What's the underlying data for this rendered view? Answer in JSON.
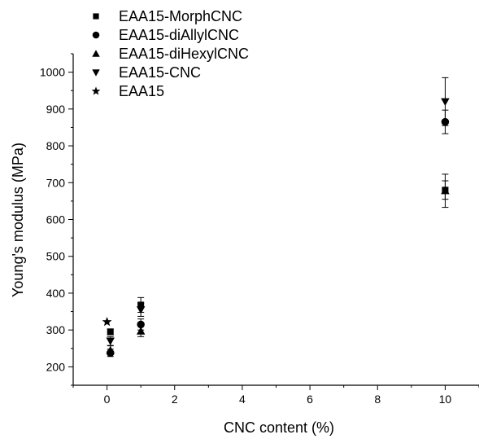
{
  "chart_data": {
    "type": "scatter",
    "title": "",
    "xlabel": "CNC content (%)",
    "ylabel": "Young's modulus (MPa)",
    "xlim": [
      -1,
      11
    ],
    "ylim": [
      150,
      1050
    ],
    "x_ticks": [
      0,
      2,
      4,
      6,
      8,
      10
    ],
    "y_ticks": [
      200,
      300,
      400,
      500,
      600,
      700,
      800,
      900,
      1000
    ],
    "grid": false,
    "legend_position": "top-left",
    "series": [
      {
        "name": "EAA15-MorphCNC",
        "marker": "square",
        "points": [
          {
            "x": 0.1,
            "y": 295,
            "err": 8
          },
          {
            "x": 1,
            "y": 368,
            "err": 20
          },
          {
            "x": 10,
            "y": 680,
            "err": 25
          }
        ]
      },
      {
        "name": "EAA15-diAllylCNC",
        "marker": "circle",
        "points": [
          {
            "x": 0.1,
            "y": 238,
            "err": 10
          },
          {
            "x": 1,
            "y": 315,
            "err": 15
          },
          {
            "x": 10,
            "y": 865,
            "err": 32
          }
        ]
      },
      {
        "name": "EAA15-diHexylCNC",
        "marker": "triangle-up",
        "points": [
          {
            "x": 0.1,
            "y": 245,
            "err": 12
          },
          {
            "x": 1,
            "y": 297,
            "err": 15
          },
          {
            "x": 10,
            "y": 678,
            "err": 45
          }
        ]
      },
      {
        "name": "EAA15-CNC",
        "marker": "triangle-down",
        "points": [
          {
            "x": 0.1,
            "y": 270,
            "err": 12
          },
          {
            "x": 1,
            "y": 355,
            "err": 18
          },
          {
            "x": 10,
            "y": 920,
            "err": 65
          }
        ]
      },
      {
        "name": "EAA15",
        "marker": "star",
        "points": [
          {
            "x": 0,
            "y": 322,
            "err": 0
          }
        ]
      }
    ]
  }
}
